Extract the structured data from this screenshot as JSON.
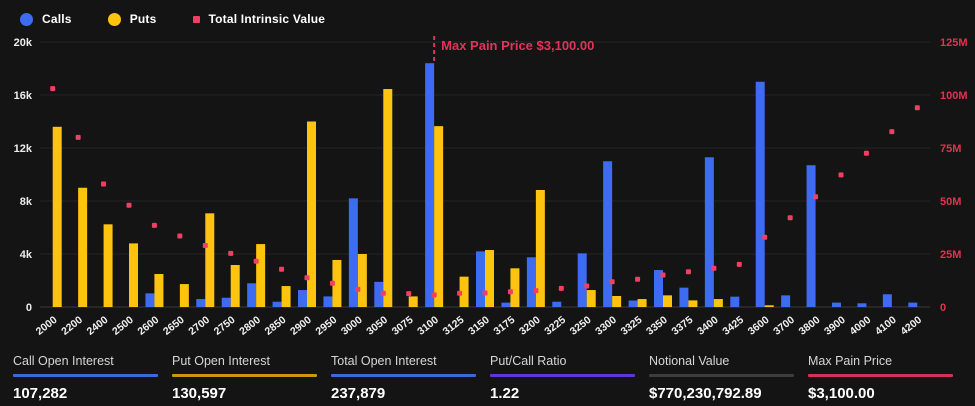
{
  "legend": [
    {
      "label": "Calls",
      "shape": "circle",
      "color": "#3d6cf2"
    },
    {
      "label": "Puts",
      "shape": "circle",
      "color": "#fcc40f"
    },
    {
      "label": "Total Intrinsic Value",
      "shape": "square",
      "color": "#f03f62"
    }
  ],
  "chart_data": {
    "type": "bar",
    "title": "",
    "categories": [
      "2000",
      "2200",
      "2400",
      "2500",
      "2600",
      "2650",
      "2700",
      "2750",
      "2800",
      "2850",
      "2900",
      "2950",
      "3000",
      "3050",
      "3075",
      "3100",
      "3125",
      "3150",
      "3175",
      "3200",
      "3225",
      "3250",
      "3300",
      "3325",
      "3350",
      "3375",
      "3400",
      "3425",
      "3600",
      "3700",
      "3800",
      "3900",
      "4000",
      "4100",
      "4200"
    ],
    "series": [
      {
        "name": "Calls",
        "type": "bar",
        "axis": "left",
        "color": "#3d6cf2",
        "values": [
          0,
          0,
          0,
          0,
          1030,
          0,
          600,
          700,
          1790,
          400,
          1280,
          800,
          8200,
          1900,
          0,
          18400,
          0,
          4200,
          330,
          3750,
          400,
          4050,
          11000,
          490,
          2790,
          1460,
          11300,
          780,
          17000,
          880,
          10700,
          330,
          280,
          960,
          330
        ]
      },
      {
        "name": "Puts",
        "type": "bar",
        "axis": "left",
        "color": "#fcc40f",
        "values": [
          13600,
          9000,
          6240,
          4800,
          2490,
          1730,
          7070,
          3170,
          4750,
          1580,
          14000,
          3550,
          4000,
          16450,
          800,
          13650,
          2290,
          4300,
          2920,
          8830,
          0,
          1280,
          830,
          600,
          880,
          500,
          600,
          0,
          130,
          0,
          0,
          0,
          0,
          0,
          0
        ]
      },
      {
        "name": "Total Intrinsic Value",
        "type": "scatter",
        "axis": "right",
        "color": "#f03f62",
        "values_millions": [
          103,
          80,
          58,
          48,
          38.5,
          33.5,
          29,
          25.3,
          21.6,
          17.8,
          13.8,
          11.2,
          8.3,
          6.5,
          6.3,
          5.7,
          6.5,
          6.6,
          7.2,
          7.7,
          8.8,
          9.9,
          11.9,
          13.1,
          15.1,
          16.6,
          18.3,
          20.1,
          32.9,
          42.1,
          52,
          62.3,
          72.5,
          82.7,
          94
        ]
      }
    ],
    "left_axis": {
      "ticks": [
        "0",
        "4k",
        "8k",
        "12k",
        "16k",
        "20k"
      ],
      "max": 20000,
      "color": "#ededed"
    },
    "right_axis": {
      "ticks": [
        "0",
        "25M",
        "50M",
        "75M",
        "100M",
        "125M"
      ],
      "max_millions": 125,
      "color": "#e53050"
    },
    "grid": true,
    "legend_position": "top-left",
    "annotation": {
      "text": "Max Pain Price $3,100.00",
      "strike": "3100",
      "color": "#e5325a"
    }
  },
  "stats": [
    {
      "label": "Call Open Interest",
      "value": "107,282",
      "color": "#3a6bd8"
    },
    {
      "label": "Put Open Interest",
      "value": "130,597",
      "color": "#c7990b"
    },
    {
      "label": "Total Open Interest",
      "value": "237,879",
      "color": "#3a6bd8"
    },
    {
      "label": "Put/Call Ratio",
      "value": "1.22",
      "color": "#5f35d8"
    },
    {
      "label": "Notional Value",
      "value": "$770,230,792.89",
      "color": "#3d3d3d"
    },
    {
      "label": "Max Pain Price",
      "value": "$3,100.00",
      "color": "#d3305a"
    }
  ]
}
